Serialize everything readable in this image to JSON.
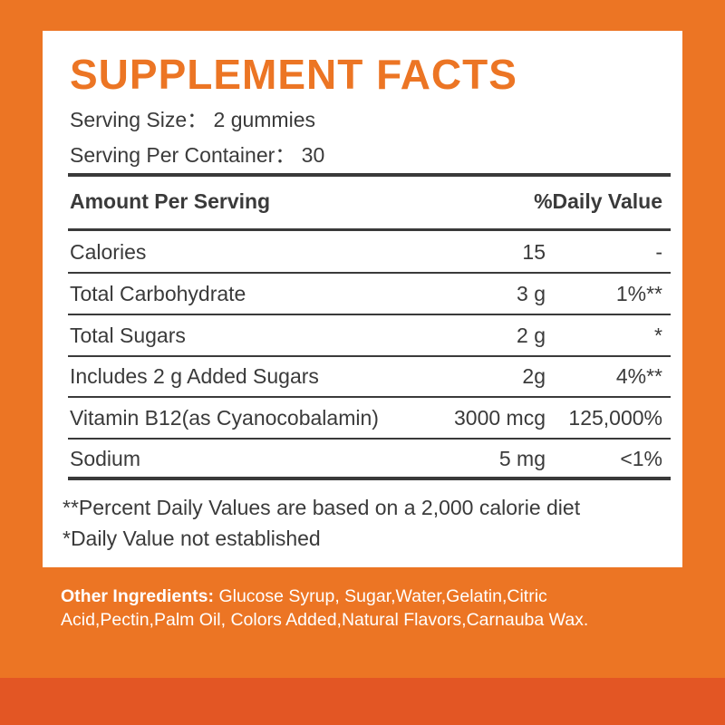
{
  "title": "SUPPLEMENT FACTS",
  "serving_size": "Serving Size： 2 gummies",
  "servings_per_container": "Serving Per Container： 30",
  "header": {
    "amount_per_serving": "Amount Per Serving",
    "daily_value": "%Daily Value"
  },
  "rows": [
    {
      "label": "Calories",
      "amount": "15",
      "dv": "-"
    },
    {
      "label": "Total Carbohydrate",
      "amount": "3 g",
      "dv": "1%**"
    },
    {
      "label": "Total Sugars",
      "amount": "2 g",
      "dv": "*"
    },
    {
      "label": "Includes 2 g Added Sugars",
      "amount": "2g",
      "dv": "4%**"
    },
    {
      "label": "Vitamin B12(as Cyanocobalamin)",
      "amount": "3000 mcg",
      "dv": "125,000%"
    },
    {
      "label": "Sodium",
      "amount": "5 mg",
      "dv": "<1%"
    }
  ],
  "footnotes": [
    "**Percent Daily Values are based on a 2,000 calorie diet",
    "*Daily Value not established"
  ],
  "ingredients": {
    "label": "Other Ingredients:",
    "text": " Glucose Syrup, Sugar,Water,Gelatin,Citric Acid,Pectin,Palm Oil, Colors Added,Natural Flavors,Carnauba Wax."
  },
  "colors": {
    "background": "#ec7524",
    "bottom_band": "#e35624",
    "title": "#ec7524",
    "text": "#3a3a3a"
  }
}
